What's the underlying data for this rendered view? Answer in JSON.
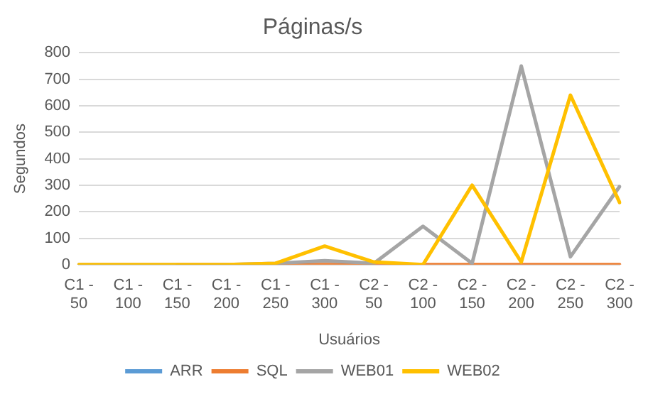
{
  "chart_data": {
    "type": "line",
    "title": "Páginas/s",
    "xlabel": "Usuários",
    "ylabel": "Segundos",
    "categories": [
      "C1 - 50",
      "C1 - 100",
      "C1 - 150",
      "C1 - 200",
      "C1 - 250",
      "C1 - 300",
      "C2 - 50",
      "C2 - 100",
      "C2 - 150",
      "C2 - 200",
      "C2 - 250",
      "C2 - 300"
    ],
    "series": [
      {
        "name": "ARR",
        "color": "#5b9bd5",
        "values": [
          null,
          null,
          null,
          null,
          null,
          null,
          null,
          null,
          null,
          null,
          null,
          null
        ]
      },
      {
        "name": "SQL",
        "color": "#ed7d31",
        "values": [
          null,
          null,
          0,
          0,
          0,
          0,
          0,
          0,
          0,
          0,
          0,
          0
        ]
      },
      {
        "name": "WEB01",
        "color": "#a5a5a5",
        "values": [
          0,
          0,
          0,
          0,
          5,
          15,
          5,
          145,
          5,
          750,
          30,
          295
        ]
      },
      {
        "name": "WEB02",
        "color": "#ffc000",
        "values": [
          0,
          0,
          0,
          0,
          5,
          70,
          10,
          0,
          300,
          10,
          640,
          235
        ]
      }
    ],
    "ylim": [
      0,
      800
    ],
    "yticks": [
      0,
      100,
      200,
      300,
      400,
      500,
      600,
      700,
      800
    ],
    "grid": "y",
    "legend": "bottom",
    "marker": "none",
    "line_style": "solid"
  }
}
